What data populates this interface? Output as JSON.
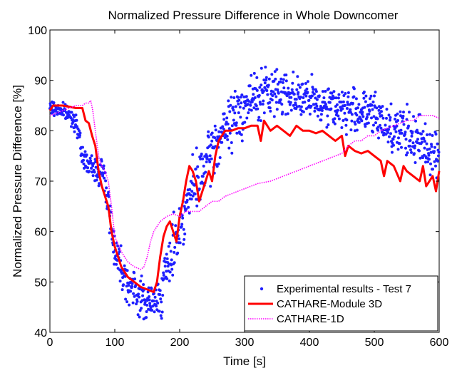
{
  "chart_data": {
    "type": "line",
    "title": "Normalized Pressure Difference in Whole Downcomer",
    "xlabel": "Time [s]",
    "ylabel": "Normalized Pressure Difference [%]",
    "xlim": [
      0,
      600
    ],
    "ylim": [
      40,
      100
    ],
    "xticks": [
      0,
      100,
      200,
      300,
      400,
      500,
      600
    ],
    "yticks": [
      40,
      50,
      60,
      70,
      80,
      90,
      100
    ],
    "grid": false,
    "legend_position": "bottom-right",
    "series": [
      {
        "name": "Experimental results - Test 7",
        "style": "scatter",
        "color": "#1f1fff",
        "anchors": [
          [
            0,
            84.5
          ],
          [
            20,
            84
          ],
          [
            40,
            82
          ],
          [
            50,
            75
          ],
          [
            60,
            73
          ],
          [
            70,
            72.5
          ],
          [
            80,
            72
          ],
          [
            85,
            70
          ],
          [
            90,
            66
          ],
          [
            95,
            60
          ],
          [
            100,
            57
          ],
          [
            110,
            53
          ],
          [
            120,
            50
          ],
          [
            130,
            48
          ],
          [
            140,
            47
          ],
          [
            150,
            46
          ],
          [
            160,
            45.5
          ],
          [
            170,
            47.5
          ],
          [
            180,
            52
          ],
          [
            190,
            57
          ],
          [
            200,
            61
          ],
          [
            210,
            65
          ],
          [
            220,
            68.5
          ],
          [
            230,
            70
          ],
          [
            240,
            73
          ],
          [
            250,
            76
          ],
          [
            260,
            78
          ],
          [
            280,
            82
          ],
          [
            300,
            85
          ],
          [
            320,
            87
          ],
          [
            340,
            87.5
          ],
          [
            360,
            88
          ],
          [
            380,
            87
          ],
          [
            400,
            86
          ],
          [
            420,
            85.5
          ],
          [
            440,
            85
          ],
          [
            460,
            84
          ],
          [
            480,
            84
          ],
          [
            500,
            83
          ],
          [
            520,
            81
          ],
          [
            540,
            80
          ],
          [
            560,
            78.5
          ],
          [
            580,
            77
          ],
          [
            600,
            75
          ]
        ],
        "spreads": [
          [
            0,
            1
          ],
          [
            60,
            1.5
          ],
          [
            90,
            3
          ],
          [
            150,
            3
          ],
          [
            200,
            4
          ],
          [
            250,
            4
          ],
          [
            300,
            4
          ],
          [
            400,
            3
          ],
          [
            500,
            3.5
          ],
          [
            600,
            4
          ]
        ]
      },
      {
        "name": "CATHARE-Module 3D",
        "style": "line",
        "color": "#ff0000",
        "points": [
          [
            0,
            84
          ],
          [
            5,
            85
          ],
          [
            20,
            85
          ],
          [
            40,
            84.5
          ],
          [
            50,
            84.5
          ],
          [
            55,
            82
          ],
          [
            60,
            81.5
          ],
          [
            65,
            79
          ],
          [
            70,
            77
          ],
          [
            75,
            72
          ],
          [
            80,
            69
          ],
          [
            85,
            67
          ],
          [
            90,
            65
          ],
          [
            95,
            60
          ],
          [
            100,
            57
          ],
          [
            105,
            55
          ],
          [
            110,
            53
          ],
          [
            120,
            51
          ],
          [
            130,
            50
          ],
          [
            140,
            49
          ],
          [
            150,
            48.5
          ],
          [
            160,
            48
          ],
          [
            165,
            50
          ],
          [
            170,
            55
          ],
          [
            175,
            59
          ],
          [
            180,
            61
          ],
          [
            185,
            62
          ],
          [
            190,
            60
          ],
          [
            195,
            58
          ],
          [
            200,
            63
          ],
          [
            205,
            66
          ],
          [
            210,
            70
          ],
          [
            215,
            73
          ],
          [
            220,
            72
          ],
          [
            225,
            70
          ],
          [
            230,
            66
          ],
          [
            235,
            68
          ],
          [
            240,
            70
          ],
          [
            245,
            72
          ],
          [
            250,
            70
          ],
          [
            255,
            75
          ],
          [
            260,
            78
          ],
          [
            265,
            79
          ],
          [
            270,
            80
          ],
          [
            280,
            80
          ],
          [
            290,
            80.5
          ],
          [
            300,
            80.5
          ],
          [
            310,
            81
          ],
          [
            320,
            81
          ],
          [
            325,
            78
          ],
          [
            330,
            82
          ],
          [
            340,
            80
          ],
          [
            350,
            81
          ],
          [
            360,
            80
          ],
          [
            370,
            79
          ],
          [
            380,
            81
          ],
          [
            390,
            80
          ],
          [
            400,
            80
          ],
          [
            410,
            79.5
          ],
          [
            420,
            80
          ],
          [
            430,
            79
          ],
          [
            440,
            78
          ],
          [
            450,
            79
          ],
          [
            455,
            75
          ],
          [
            460,
            77
          ],
          [
            470,
            76
          ],
          [
            480,
            75.5
          ],
          [
            490,
            76
          ],
          [
            500,
            75
          ],
          [
            510,
            74
          ],
          [
            515,
            71
          ],
          [
            520,
            74
          ],
          [
            530,
            73
          ],
          [
            540,
            70
          ],
          [
            545,
            73
          ],
          [
            550,
            72
          ],
          [
            560,
            71
          ],
          [
            570,
            70
          ],
          [
            575,
            73
          ],
          [
            580,
            69
          ],
          [
            590,
            71
          ],
          [
            595,
            68
          ],
          [
            600,
            72
          ]
        ]
      },
      {
        "name": "CATHARE-1D",
        "style": "dotted",
        "color": "#ff00ff",
        "points": [
          [
            0,
            83
          ],
          [
            10,
            83.5
          ],
          [
            20,
            84
          ],
          [
            30,
            84.5
          ],
          [
            40,
            85
          ],
          [
            50,
            85
          ],
          [
            55,
            85.5
          ],
          [
            60,
            85.5
          ],
          [
            63,
            86
          ],
          [
            66,
            84
          ],
          [
            70,
            80
          ],
          [
            75,
            75
          ],
          [
            80,
            73
          ],
          [
            85,
            72
          ],
          [
            90,
            70
          ],
          [
            95,
            65
          ],
          [
            100,
            59
          ],
          [
            110,
            56
          ],
          [
            120,
            54
          ],
          [
            130,
            53
          ],
          [
            140,
            52.5
          ],
          [
            145,
            53
          ],
          [
            150,
            55
          ],
          [
            155,
            58
          ],
          [
            160,
            60
          ],
          [
            170,
            62
          ],
          [
            180,
            63
          ],
          [
            190,
            63.5
          ],
          [
            200,
            63
          ],
          [
            210,
            64
          ],
          [
            220,
            64
          ],
          [
            230,
            64
          ],
          [
            240,
            65
          ],
          [
            250,
            66
          ],
          [
            260,
            66
          ],
          [
            270,
            67
          ],
          [
            280,
            67.5
          ],
          [
            290,
            68
          ],
          [
            300,
            68.5
          ],
          [
            320,
            69.5
          ],
          [
            340,
            70
          ],
          [
            360,
            71
          ],
          [
            380,
            72
          ],
          [
            400,
            73
          ],
          [
            420,
            74
          ],
          [
            440,
            75
          ],
          [
            450,
            75.5
          ],
          [
            460,
            77
          ],
          [
            470,
            78
          ],
          [
            480,
            78
          ],
          [
            490,
            79
          ],
          [
            500,
            79
          ],
          [
            510,
            80
          ],
          [
            520,
            80.5
          ],
          [
            530,
            81
          ],
          [
            540,
            81.5
          ],
          [
            550,
            82
          ],
          [
            560,
            82
          ],
          [
            570,
            83
          ],
          [
            580,
            83
          ],
          [
            590,
            83
          ],
          [
            600,
            82.5
          ]
        ]
      }
    ]
  }
}
